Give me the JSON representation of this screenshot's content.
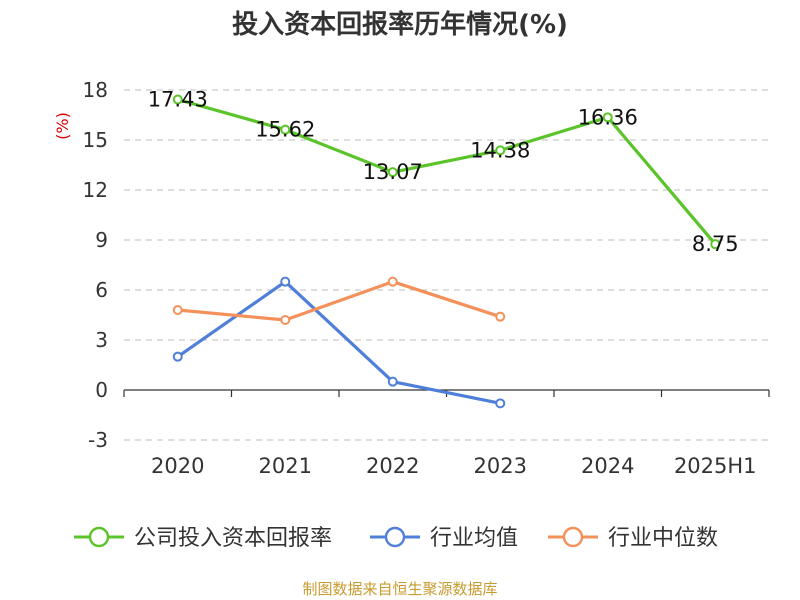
{
  "chart_data": {
    "type": "line",
    "title": "投入资本回报率历年情况(%)",
    "ylabel": "(%)",
    "categories": [
      "2020",
      "2021",
      "2022",
      "2023",
      "2024",
      "2025H1"
    ],
    "ylim": [
      -3,
      18
    ],
    "yticks": [
      -3,
      0,
      3,
      6,
      9,
      12,
      15,
      18
    ],
    "grid": true,
    "legend_position": "bottom",
    "series": [
      {
        "name": "公司投入资本回报率",
        "color": "#5cc42b",
        "values": [
          17.43,
          15.62,
          13.07,
          14.38,
          16.36,
          8.75
        ],
        "labels": [
          "17.43",
          "15.62",
          "13.07",
          "14.38",
          "16.36",
          "8.75"
        ]
      },
      {
        "name": "行业均值",
        "color": "#4f7fd9",
        "values": [
          2.0,
          6.5,
          0.5,
          -0.8,
          null,
          null
        ]
      },
      {
        "name": "行业中位数",
        "color": "#f4915b",
        "values": [
          4.8,
          4.2,
          6.5,
          4.4,
          null,
          null
        ]
      }
    ]
  },
  "footer": {
    "source": "制图数据来自恒生聚源数据库"
  }
}
